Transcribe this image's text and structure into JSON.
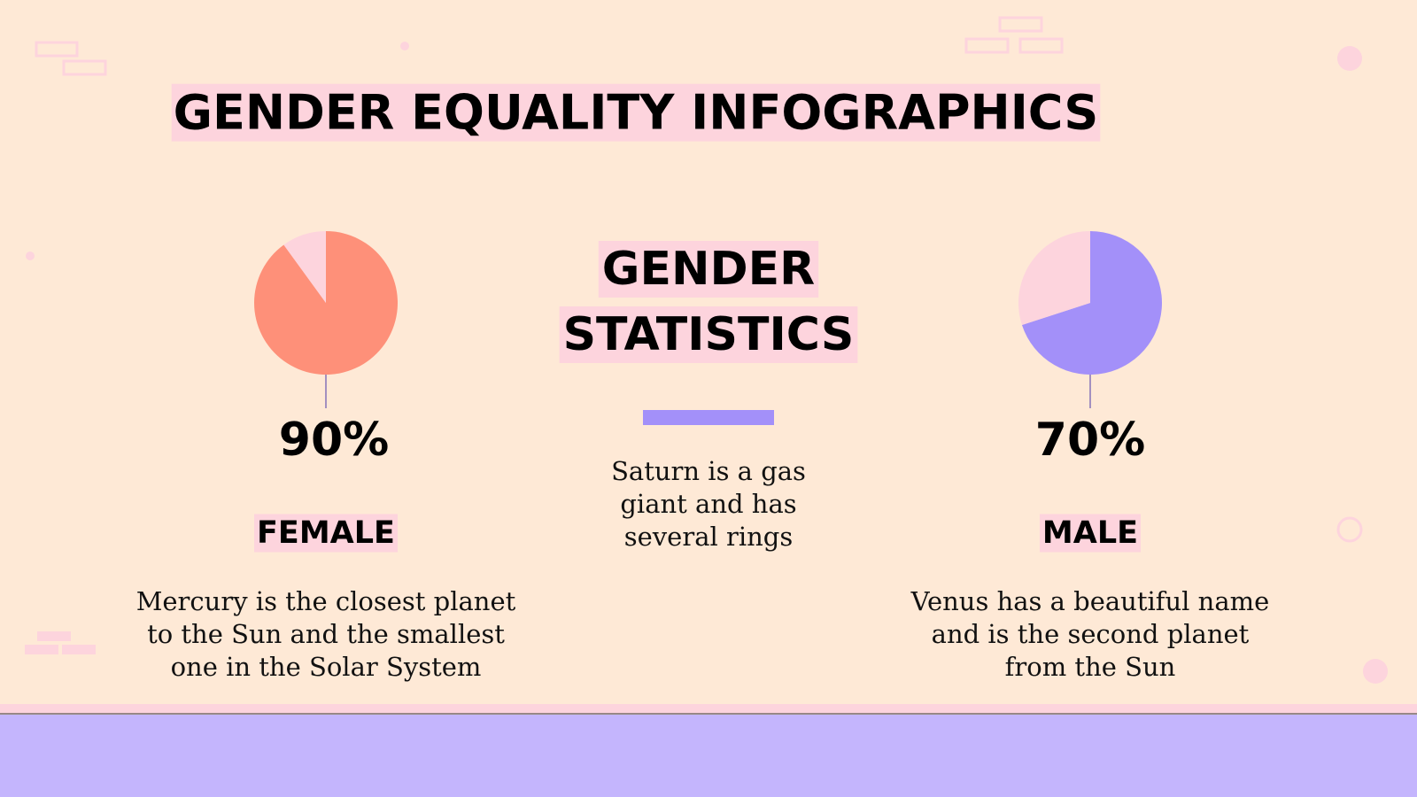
{
  "title": "GENDER EQUALITY INFOGRAPHICS",
  "center": {
    "heading": [
      "GENDER",
      "STATISTICS"
    ],
    "text": [
      "Saturn is a gas",
      "giant and has",
      "several rings"
    ]
  },
  "chart_data": [
    {
      "type": "pie",
      "title": "FEMALE",
      "values": [
        90,
        10
      ],
      "value_labels": [
        "90%",
        null
      ],
      "colors": [
        "#fe9079",
        "#fdd4dd"
      ],
      "description": [
        "Mercury is the closest planet",
        "to the Sun and the smallest",
        "one in the Solar System"
      ]
    },
    {
      "type": "pie",
      "title": "MALE",
      "values": [
        70,
        30
      ],
      "value_labels": [
        "70%",
        null
      ],
      "colors": [
        "#a390f9",
        "#fdd4dd"
      ],
      "description": [
        "Venus has a beautiful name",
        "and is the second planet",
        "from the Sun"
      ]
    }
  ]
}
